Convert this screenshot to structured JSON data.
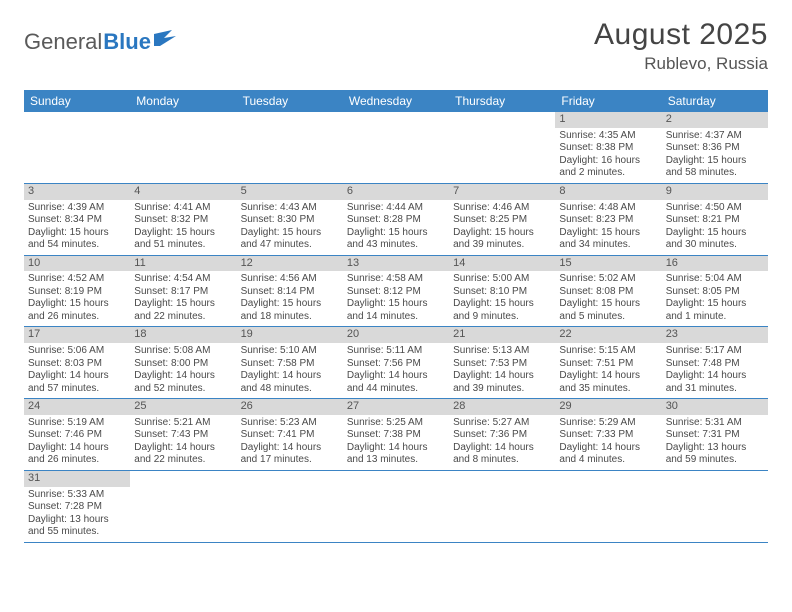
{
  "logo": {
    "general": "General",
    "blue": "Blue"
  },
  "title": {
    "month_year": "August 2025",
    "location": "Rublevo, Russia"
  },
  "colors": {
    "header_bg": "#3b84c4",
    "header_text": "#ffffff",
    "daynum_bg": "#d9d9d9",
    "week_border": "#3b84c4",
    "logo_gray": "#5a5a5a",
    "logo_blue": "#2a77c0"
  },
  "day_headers": [
    "Sunday",
    "Monday",
    "Tuesday",
    "Wednesday",
    "Thursday",
    "Friday",
    "Saturday"
  ],
  "weeks": [
    [
      {
        "day": "",
        "sunrise": "",
        "sunset": "",
        "daylight": ""
      },
      {
        "day": "",
        "sunrise": "",
        "sunset": "",
        "daylight": ""
      },
      {
        "day": "",
        "sunrise": "",
        "sunset": "",
        "daylight": ""
      },
      {
        "day": "",
        "sunrise": "",
        "sunset": "",
        "daylight": ""
      },
      {
        "day": "",
        "sunrise": "",
        "sunset": "",
        "daylight": ""
      },
      {
        "day": "1",
        "sunrise": "Sunrise: 4:35 AM",
        "sunset": "Sunset: 8:38 PM",
        "daylight": "Daylight: 16 hours and 2 minutes."
      },
      {
        "day": "2",
        "sunrise": "Sunrise: 4:37 AM",
        "sunset": "Sunset: 8:36 PM",
        "daylight": "Daylight: 15 hours and 58 minutes."
      }
    ],
    [
      {
        "day": "3",
        "sunrise": "Sunrise: 4:39 AM",
        "sunset": "Sunset: 8:34 PM",
        "daylight": "Daylight: 15 hours and 54 minutes."
      },
      {
        "day": "4",
        "sunrise": "Sunrise: 4:41 AM",
        "sunset": "Sunset: 8:32 PM",
        "daylight": "Daylight: 15 hours and 51 minutes."
      },
      {
        "day": "5",
        "sunrise": "Sunrise: 4:43 AM",
        "sunset": "Sunset: 8:30 PM",
        "daylight": "Daylight: 15 hours and 47 minutes."
      },
      {
        "day": "6",
        "sunrise": "Sunrise: 4:44 AM",
        "sunset": "Sunset: 8:28 PM",
        "daylight": "Daylight: 15 hours and 43 minutes."
      },
      {
        "day": "7",
        "sunrise": "Sunrise: 4:46 AM",
        "sunset": "Sunset: 8:25 PM",
        "daylight": "Daylight: 15 hours and 39 minutes."
      },
      {
        "day": "8",
        "sunrise": "Sunrise: 4:48 AM",
        "sunset": "Sunset: 8:23 PM",
        "daylight": "Daylight: 15 hours and 34 minutes."
      },
      {
        "day": "9",
        "sunrise": "Sunrise: 4:50 AM",
        "sunset": "Sunset: 8:21 PM",
        "daylight": "Daylight: 15 hours and 30 minutes."
      }
    ],
    [
      {
        "day": "10",
        "sunrise": "Sunrise: 4:52 AM",
        "sunset": "Sunset: 8:19 PM",
        "daylight": "Daylight: 15 hours and 26 minutes."
      },
      {
        "day": "11",
        "sunrise": "Sunrise: 4:54 AM",
        "sunset": "Sunset: 8:17 PM",
        "daylight": "Daylight: 15 hours and 22 minutes."
      },
      {
        "day": "12",
        "sunrise": "Sunrise: 4:56 AM",
        "sunset": "Sunset: 8:14 PM",
        "daylight": "Daylight: 15 hours and 18 minutes."
      },
      {
        "day": "13",
        "sunrise": "Sunrise: 4:58 AM",
        "sunset": "Sunset: 8:12 PM",
        "daylight": "Daylight: 15 hours and 14 minutes."
      },
      {
        "day": "14",
        "sunrise": "Sunrise: 5:00 AM",
        "sunset": "Sunset: 8:10 PM",
        "daylight": "Daylight: 15 hours and 9 minutes."
      },
      {
        "day": "15",
        "sunrise": "Sunrise: 5:02 AM",
        "sunset": "Sunset: 8:08 PM",
        "daylight": "Daylight: 15 hours and 5 minutes."
      },
      {
        "day": "16",
        "sunrise": "Sunrise: 5:04 AM",
        "sunset": "Sunset: 8:05 PM",
        "daylight": "Daylight: 15 hours and 1 minute."
      }
    ],
    [
      {
        "day": "17",
        "sunrise": "Sunrise: 5:06 AM",
        "sunset": "Sunset: 8:03 PM",
        "daylight": "Daylight: 14 hours and 57 minutes."
      },
      {
        "day": "18",
        "sunrise": "Sunrise: 5:08 AM",
        "sunset": "Sunset: 8:00 PM",
        "daylight": "Daylight: 14 hours and 52 minutes."
      },
      {
        "day": "19",
        "sunrise": "Sunrise: 5:10 AM",
        "sunset": "Sunset: 7:58 PM",
        "daylight": "Daylight: 14 hours and 48 minutes."
      },
      {
        "day": "20",
        "sunrise": "Sunrise: 5:11 AM",
        "sunset": "Sunset: 7:56 PM",
        "daylight": "Daylight: 14 hours and 44 minutes."
      },
      {
        "day": "21",
        "sunrise": "Sunrise: 5:13 AM",
        "sunset": "Sunset: 7:53 PM",
        "daylight": "Daylight: 14 hours and 39 minutes."
      },
      {
        "day": "22",
        "sunrise": "Sunrise: 5:15 AM",
        "sunset": "Sunset: 7:51 PM",
        "daylight": "Daylight: 14 hours and 35 minutes."
      },
      {
        "day": "23",
        "sunrise": "Sunrise: 5:17 AM",
        "sunset": "Sunset: 7:48 PM",
        "daylight": "Daylight: 14 hours and 31 minutes."
      }
    ],
    [
      {
        "day": "24",
        "sunrise": "Sunrise: 5:19 AM",
        "sunset": "Sunset: 7:46 PM",
        "daylight": "Daylight: 14 hours and 26 minutes."
      },
      {
        "day": "25",
        "sunrise": "Sunrise: 5:21 AM",
        "sunset": "Sunset: 7:43 PM",
        "daylight": "Daylight: 14 hours and 22 minutes."
      },
      {
        "day": "26",
        "sunrise": "Sunrise: 5:23 AM",
        "sunset": "Sunset: 7:41 PM",
        "daylight": "Daylight: 14 hours and 17 minutes."
      },
      {
        "day": "27",
        "sunrise": "Sunrise: 5:25 AM",
        "sunset": "Sunset: 7:38 PM",
        "daylight": "Daylight: 14 hours and 13 minutes."
      },
      {
        "day": "28",
        "sunrise": "Sunrise: 5:27 AM",
        "sunset": "Sunset: 7:36 PM",
        "daylight": "Daylight: 14 hours and 8 minutes."
      },
      {
        "day": "29",
        "sunrise": "Sunrise: 5:29 AM",
        "sunset": "Sunset: 7:33 PM",
        "daylight": "Daylight: 14 hours and 4 minutes."
      },
      {
        "day": "30",
        "sunrise": "Sunrise: 5:31 AM",
        "sunset": "Sunset: 7:31 PM",
        "daylight": "Daylight: 13 hours and 59 minutes."
      }
    ],
    [
      {
        "day": "31",
        "sunrise": "Sunrise: 5:33 AM",
        "sunset": "Sunset: 7:28 PM",
        "daylight": "Daylight: 13 hours and 55 minutes."
      },
      {
        "day": "",
        "sunrise": "",
        "sunset": "",
        "daylight": ""
      },
      {
        "day": "",
        "sunrise": "",
        "sunset": "",
        "daylight": ""
      },
      {
        "day": "",
        "sunrise": "",
        "sunset": "",
        "daylight": ""
      },
      {
        "day": "",
        "sunrise": "",
        "sunset": "",
        "daylight": ""
      },
      {
        "day": "",
        "sunrise": "",
        "sunset": "",
        "daylight": ""
      },
      {
        "day": "",
        "sunrise": "",
        "sunset": "",
        "daylight": ""
      }
    ]
  ]
}
